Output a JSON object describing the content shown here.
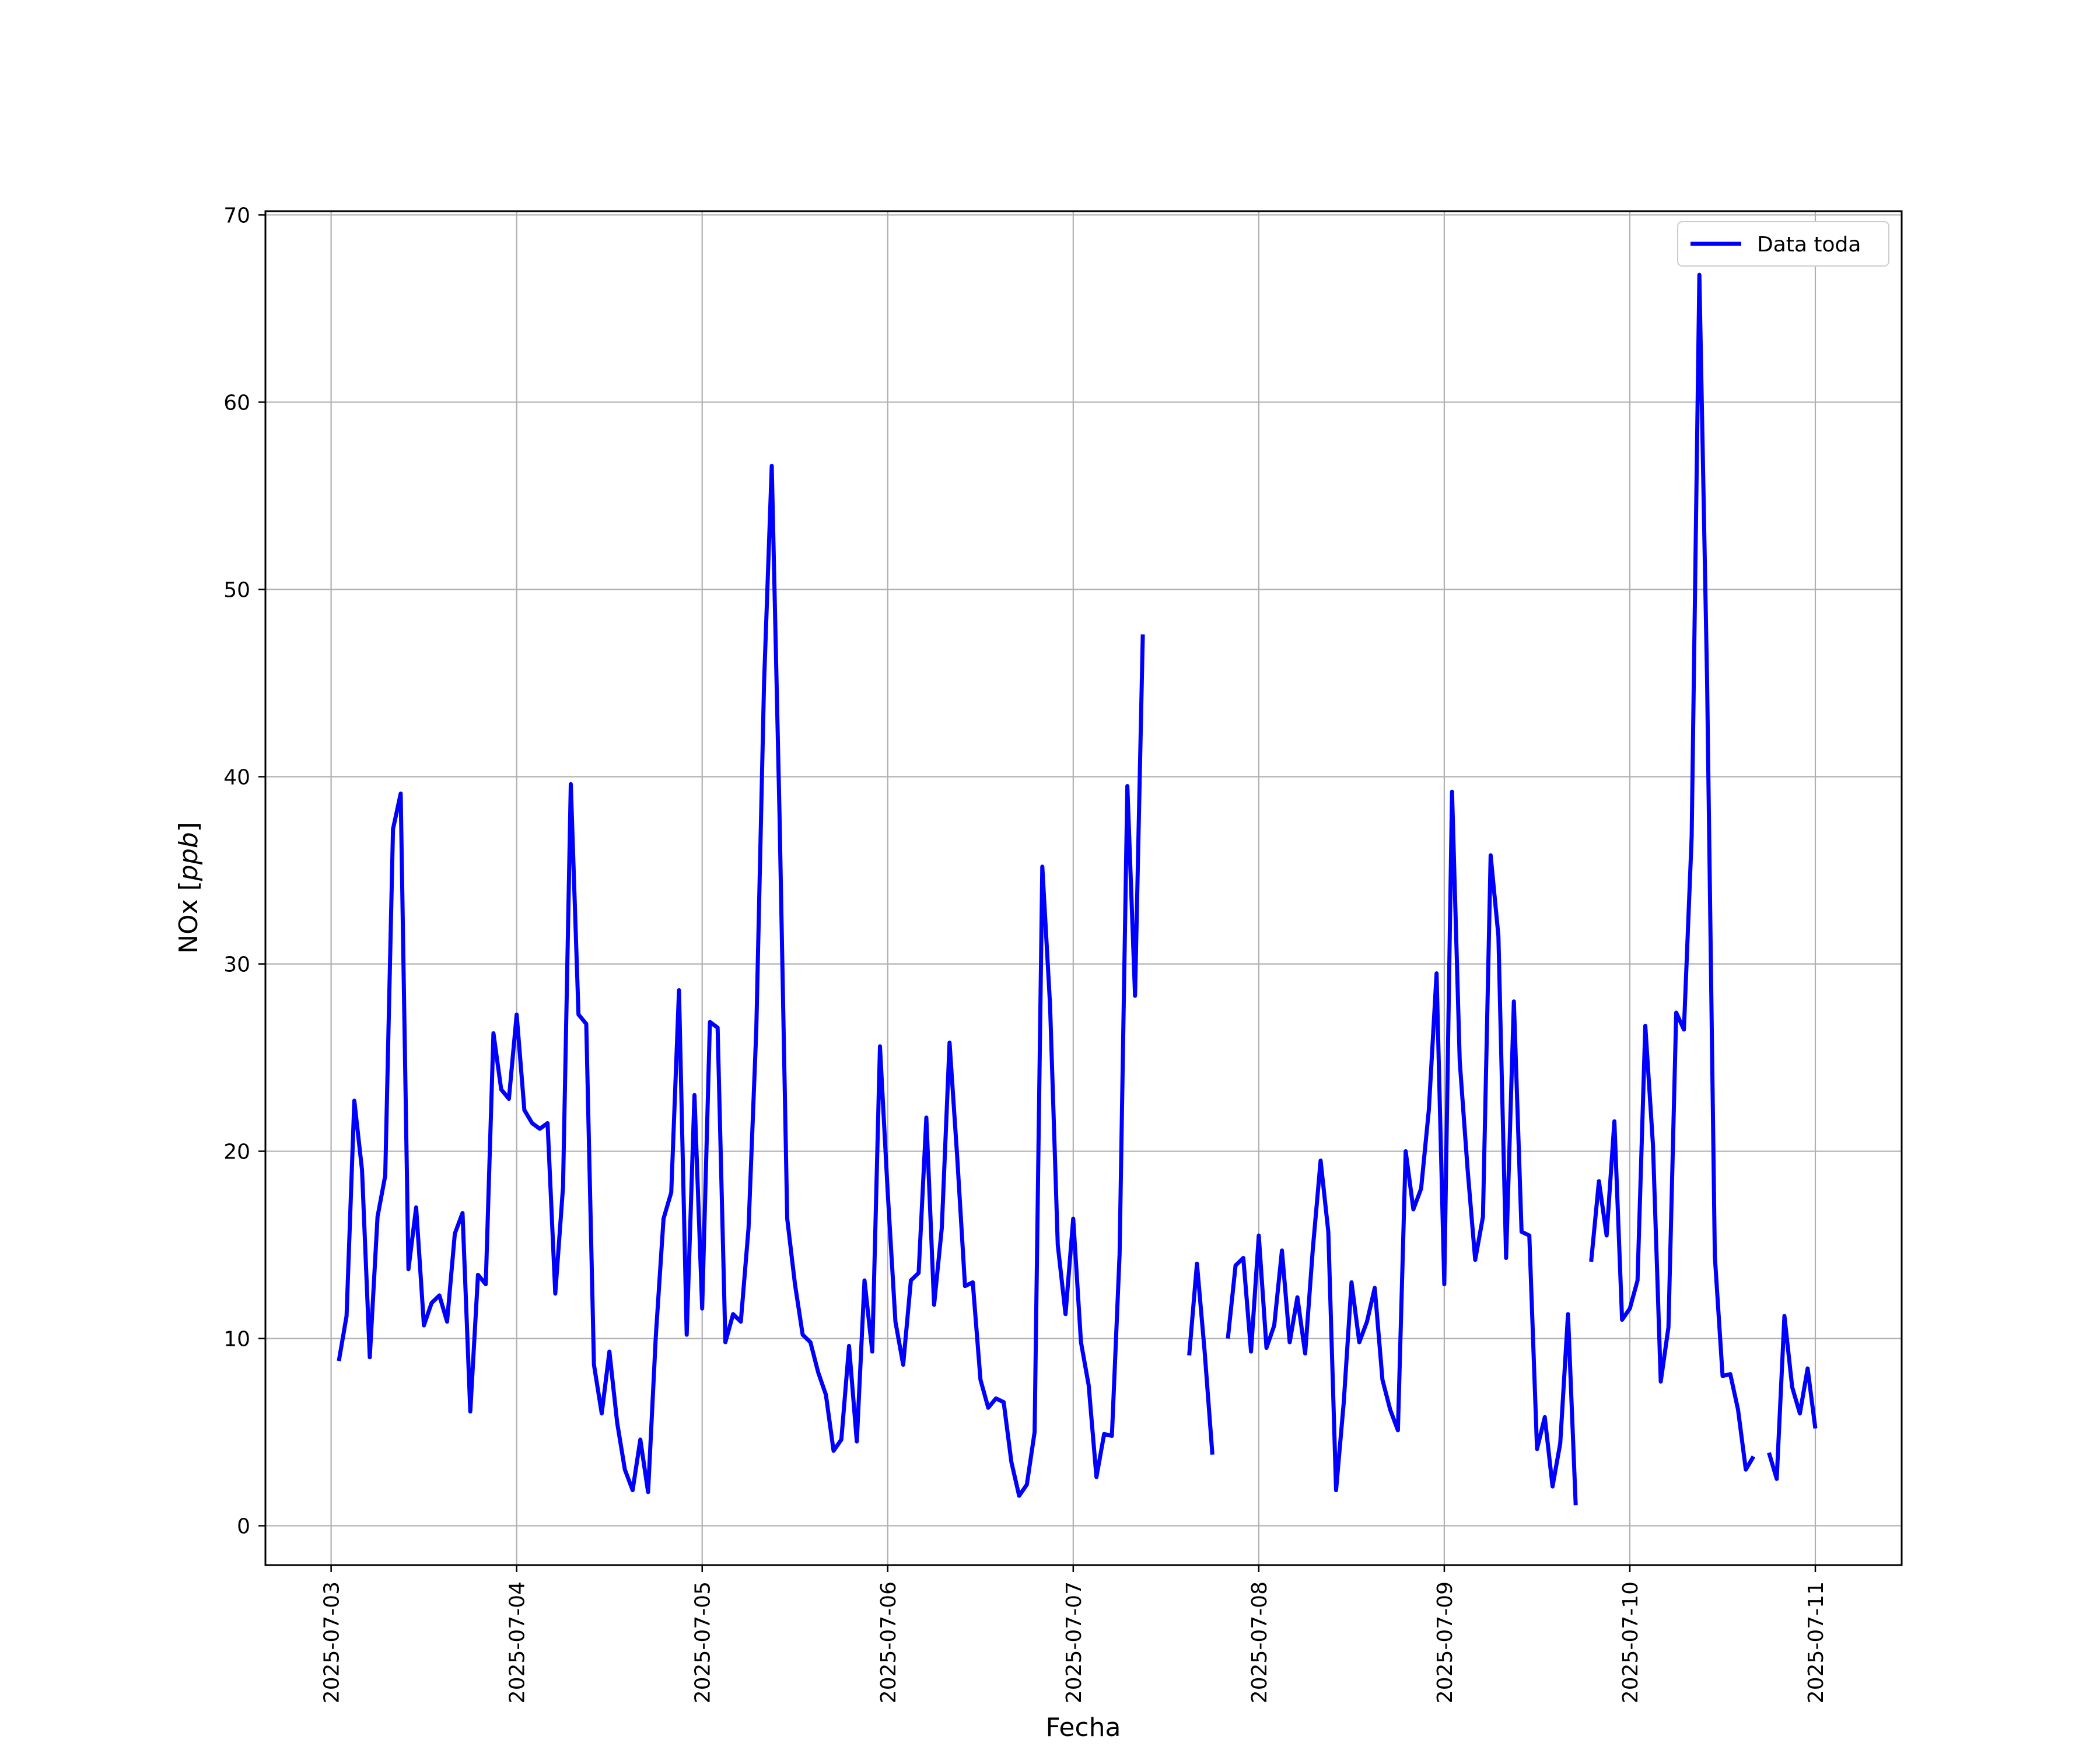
{
  "chart_data": {
    "type": "line",
    "title": "",
    "xlabel": "Fecha",
    "ylabel_prefix": "NOx [",
    "ylabel_unit": "ppb",
    "ylabel_suffix": "]",
    "x_ticks": [
      "2025-07-03",
      "2025-07-04",
      "2025-07-05",
      "2025-07-06",
      "2025-07-07",
      "2025-07-08",
      "2025-07-09",
      "2025-07-10",
      "2025-07-11"
    ],
    "y_ticks": [
      "0",
      "10",
      "20",
      "30",
      "40",
      "50",
      "60",
      "70"
    ],
    "xlim": [
      "2025-07-02 15:30",
      "2025-07-11 11:10"
    ],
    "ylim": [
      -2.1,
      70.2
    ],
    "grid": true,
    "legend": {
      "position": "top-right"
    },
    "series": [
      {
        "name": "Data toda",
        "color": "#0000ff",
        "segments": [
          [
            [
              "2025-07-03 01:00",
              8.8
            ],
            [
              "2025-07-03 02:00",
              11.2
            ],
            [
              "2025-07-03 03:00",
              22.7
            ],
            [
              "2025-07-03 04:00",
              19.0
            ],
            [
              "2025-07-03 05:00",
              9.0
            ],
            [
              "2025-07-03 06:00",
              16.5
            ],
            [
              "2025-07-03 07:00",
              18.7
            ],
            [
              "2025-07-03 08:00",
              37.2
            ],
            [
              "2025-07-03 09:00",
              39.1
            ],
            [
              "2025-07-03 10:00",
              13.7
            ],
            [
              "2025-07-03 11:00",
              17.0
            ],
            [
              "2025-07-03 12:00",
              10.7
            ],
            [
              "2025-07-03 13:00",
              11.9
            ],
            [
              "2025-07-03 14:00",
              12.3
            ],
            [
              "2025-07-03 15:00",
              10.9
            ],
            [
              "2025-07-03 16:00",
              15.6
            ],
            [
              "2025-07-03 17:00",
              16.7
            ],
            [
              "2025-07-03 18:00",
              6.1
            ],
            [
              "2025-07-03 19:00",
              13.4
            ],
            [
              "2025-07-03 20:00",
              12.9
            ],
            [
              "2025-07-03 21:00",
              26.3
            ],
            [
              "2025-07-03 22:00",
              23.3
            ],
            [
              "2025-07-03 23:00",
              22.8
            ],
            [
              "2025-07-04 00:00",
              27.3
            ],
            [
              "2025-07-04 01:00",
              22.2
            ],
            [
              "2025-07-04 02:00",
              21.5
            ],
            [
              "2025-07-04 03:00",
              21.2
            ],
            [
              "2025-07-04 04:00",
              21.5
            ],
            [
              "2025-07-04 05:00",
              12.4
            ],
            [
              "2025-07-04 06:00",
              18.1
            ],
            [
              "2025-07-04 07:00",
              39.6
            ],
            [
              "2025-07-04 08:00",
              27.3
            ],
            [
              "2025-07-04 09:00",
              26.8
            ],
            [
              "2025-07-04 10:00",
              8.6
            ],
            [
              "2025-07-04 11:00",
              6.0
            ],
            [
              "2025-07-04 12:00",
              9.3
            ],
            [
              "2025-07-04 13:00",
              5.5
            ],
            [
              "2025-07-04 14:00",
              3.0
            ],
            [
              "2025-07-04 15:00",
              1.9
            ],
            [
              "2025-07-04 16:00",
              4.6
            ],
            [
              "2025-07-04 17:00",
              1.8
            ],
            [
              "2025-07-04 18:00",
              10.1
            ],
            [
              "2025-07-04 19:00",
              16.4
            ],
            [
              "2025-07-04 20:00",
              17.8
            ],
            [
              "2025-07-04 21:00",
              28.6
            ],
            [
              "2025-07-04 22:00",
              10.2
            ],
            [
              "2025-07-04 23:00",
              23.0
            ],
            [
              "2025-07-05 00:00",
              11.6
            ],
            [
              "2025-07-05 01:00",
              26.9
            ],
            [
              "2025-07-05 02:00",
              26.6
            ],
            [
              "2025-07-05 03:00",
              9.8
            ],
            [
              "2025-07-05 04:00",
              11.3
            ],
            [
              "2025-07-05 05:00",
              10.9
            ],
            [
              "2025-07-05 06:00",
              15.9
            ],
            [
              "2025-07-05 07:00",
              26.5
            ],
            [
              "2025-07-05 08:00",
              45.0
            ],
            [
              "2025-07-05 09:00",
              56.6
            ],
            [
              "2025-07-05 10:00",
              38.0
            ],
            [
              "2025-07-05 11:00",
              16.4
            ],
            [
              "2025-07-05 12:00",
              12.9
            ],
            [
              "2025-07-05 13:00",
              10.2
            ],
            [
              "2025-07-05 14:00",
              9.8
            ],
            [
              "2025-07-05 15:00",
              8.2
            ],
            [
              "2025-07-05 16:00",
              7.0
            ],
            [
              "2025-07-05 17:00",
              4.0
            ],
            [
              "2025-07-05 18:00",
              4.6
            ],
            [
              "2025-07-05 19:00",
              9.6
            ],
            [
              "2025-07-05 20:00",
              4.5
            ],
            [
              "2025-07-05 21:00",
              13.1
            ],
            [
              "2025-07-05 22:00",
              9.3
            ],
            [
              "2025-07-05 23:00",
              25.6
            ],
            [
              "2025-07-06 00:00",
              17.8
            ],
            [
              "2025-07-06 01:00",
              10.9
            ],
            [
              "2025-07-06 02:00",
              8.6
            ],
            [
              "2025-07-06 03:00",
              13.1
            ],
            [
              "2025-07-06 04:00",
              13.5
            ],
            [
              "2025-07-06 05:00",
              21.8
            ],
            [
              "2025-07-06 06:00",
              11.8
            ],
            [
              "2025-07-06 07:00",
              15.9
            ],
            [
              "2025-07-06 08:00",
              25.8
            ],
            [
              "2025-07-06 09:00",
              19.6
            ],
            [
              "2025-07-06 10:00",
              12.8
            ],
            [
              "2025-07-06 11:00",
              13.0
            ],
            [
              "2025-07-06 12:00",
              7.8
            ],
            [
              "2025-07-06 13:00",
              6.3
            ],
            [
              "2025-07-06 14:00",
              6.8
            ],
            [
              "2025-07-06 15:00",
              6.6
            ],
            [
              "2025-07-06 16:00",
              3.4
            ],
            [
              "2025-07-06 17:00",
              1.6
            ],
            [
              "2025-07-06 18:00",
              2.2
            ],
            [
              "2025-07-06 19:00",
              5.0
            ],
            [
              "2025-07-06 20:00",
              35.2
            ],
            [
              "2025-07-06 21:00",
              27.8
            ],
            [
              "2025-07-06 22:00",
              15.0
            ],
            [
              "2025-07-06 23:00",
              11.3
            ],
            [
              "2025-07-07 00:00",
              16.4
            ],
            [
              "2025-07-07 01:00",
              9.8
            ],
            [
              "2025-07-07 02:00",
              7.5
            ],
            [
              "2025-07-07 03:00",
              2.6
            ],
            [
              "2025-07-07 04:00",
              4.9
            ],
            [
              "2025-07-07 05:00",
              4.8
            ],
            [
              "2025-07-07 06:00",
              14.5
            ],
            [
              "2025-07-07 07:00",
              39.5
            ],
            [
              "2025-07-07 08:00",
              28.3
            ],
            [
              "2025-07-07 09:00",
              47.6
            ]
          ],
          [
            [
              "2025-07-07 15:00",
              9.1
            ],
            [
              "2025-07-07 16:00",
              14.0
            ],
            [
              "2025-07-07 17:00",
              9.3
            ],
            [
              "2025-07-07 18:00",
              3.8
            ]
          ],
          [
            [
              "2025-07-07 20:00",
              10.0
            ],
            [
              "2025-07-07 21:00",
              13.9
            ],
            [
              "2025-07-07 22:00",
              14.3
            ],
            [
              "2025-07-07 23:00",
              9.3
            ],
            [
              "2025-07-08 00:00",
              15.5
            ],
            [
              "2025-07-08 01:00",
              9.5
            ],
            [
              "2025-07-08 02:00",
              10.7
            ],
            [
              "2025-07-08 03:00",
              14.7
            ],
            [
              "2025-07-08 04:00",
              9.8
            ],
            [
              "2025-07-08 05:00",
              12.2
            ],
            [
              "2025-07-08 06:00",
              9.2
            ],
            [
              "2025-07-08 07:00",
              14.8
            ],
            [
              "2025-07-08 08:00",
              19.5
            ],
            [
              "2025-07-08 09:00",
              15.7
            ],
            [
              "2025-07-08 10:00",
              1.9
            ],
            [
              "2025-07-08 11:00",
              6.6
            ],
            [
              "2025-07-08 12:00",
              13.0
            ],
            [
              "2025-07-08 13:00",
              9.8
            ],
            [
              "2025-07-08 14:00",
              10.9
            ],
            [
              "2025-07-08 15:00",
              12.7
            ],
            [
              "2025-07-08 16:00",
              7.8
            ],
            [
              "2025-07-08 17:00",
              6.2
            ],
            [
              "2025-07-08 18:00",
              5.1
            ],
            [
              "2025-07-08 19:00",
              20.0
            ],
            [
              "2025-07-08 20:00",
              16.9
            ],
            [
              "2025-07-08 21:00",
              18.0
            ],
            [
              "2025-07-08 22:00",
              22.2
            ],
            [
              "2025-07-08 23:00",
              29.5
            ],
            [
              "2025-07-09 00:00",
              12.9
            ],
            [
              "2025-07-09 01:00",
              39.2
            ],
            [
              "2025-07-09 02:00",
              24.8
            ],
            [
              "2025-07-09 03:00",
              19.1
            ],
            [
              "2025-07-09 04:00",
              14.2
            ],
            [
              "2025-07-09 05:00",
              16.5
            ],
            [
              "2025-07-09 06:00",
              35.8
            ],
            [
              "2025-07-09 07:00",
              31.5
            ],
            [
              "2025-07-09 08:00",
              14.3
            ],
            [
              "2025-07-09 09:00",
              28.0
            ],
            [
              "2025-07-09 10:00",
              15.7
            ],
            [
              "2025-07-09 11:00",
              15.5
            ],
            [
              "2025-07-09 12:00",
              4.1
            ],
            [
              "2025-07-09 13:00",
              5.8
            ],
            [
              "2025-07-09 14:00",
              2.1
            ],
            [
              "2025-07-09 15:00",
              4.4
            ],
            [
              "2025-07-09 16:00",
              11.3
            ],
            [
              "2025-07-09 17:00",
              1.1
            ]
          ],
          [
            [
              "2025-07-09 19:00",
              14.1
            ],
            [
              "2025-07-09 20:00",
              18.4
            ],
            [
              "2025-07-09 21:00",
              15.5
            ],
            [
              "2025-07-09 22:00",
              21.6
            ],
            [
              "2025-07-09 23:00",
              11.0
            ],
            [
              "2025-07-10 00:00",
              11.6
            ],
            [
              "2025-07-10 01:00",
              13.1
            ],
            [
              "2025-07-10 02:00",
              26.7
            ],
            [
              "2025-07-10 03:00",
              20.3
            ],
            [
              "2025-07-10 04:00",
              7.7
            ],
            [
              "2025-07-10 05:00",
              10.6
            ],
            [
              "2025-07-10 06:00",
              27.4
            ],
            [
              "2025-07-10 07:00",
              26.5
            ],
            [
              "2025-07-10 08:00",
              36.8
            ],
            [
              "2025-07-10 09:00",
              66.8
            ],
            [
              "2025-07-10 10:00",
              45.0
            ],
            [
              "2025-07-10 11:00",
              14.4
            ],
            [
              "2025-07-10 12:00",
              8.0
            ],
            [
              "2025-07-10 13:00",
              8.1
            ],
            [
              "2025-07-10 14:00",
              6.2
            ],
            [
              "2025-07-10 15:00",
              3.0
            ],
            [
              "2025-07-10 16:00",
              3.7
            ]
          ],
          [
            [
              "2025-07-10 18:00",
              3.9
            ],
            [
              "2025-07-10 19:00",
              2.5
            ],
            [
              "2025-07-10 20:00",
              11.2
            ],
            [
              "2025-07-10 21:00",
              7.4
            ],
            [
              "2025-07-10 22:00",
              6.0
            ],
            [
              "2025-07-10 23:00",
              8.4
            ],
            [
              "2025-07-11 00:00",
              5.2
            ]
          ]
        ]
      }
    ]
  }
}
